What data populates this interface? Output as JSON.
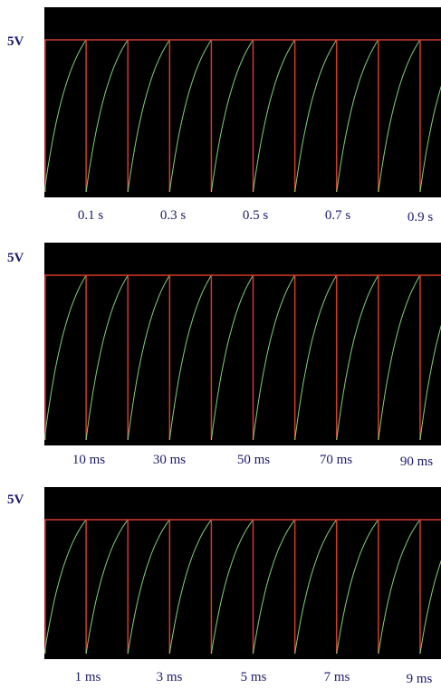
{
  "chart_data": [
    {
      "type": "line",
      "y_label_text": "5V",
      "tick_labels": [
        "0.1 s",
        "0.3 s",
        "0.5 s",
        "0.7 s",
        "0.9 s"
      ],
      "colors": {
        "background": "#000000",
        "frame": "#d33a2a",
        "charge_curve": "#7ed07e",
        "label": "#1a1a6e"
      },
      "series": [
        {
          "values": []
        }
      ],
      "cycles": 10
    },
    {
      "type": "line",
      "y_label_text": "5V",
      "tick_labels": [
        "10 ms",
        "30 ms",
        "50 ms",
        "70 ms",
        "90 ms"
      ],
      "colors": {
        "background": "#000000",
        "frame": "#d33a2a",
        "charge_curve": "#7ed07e",
        "label": "#1a1a6e"
      },
      "series": [
        {
          "values": []
        }
      ],
      "cycles": 10
    },
    {
      "type": "line",
      "y_label_text": "5V",
      "tick_labels": [
        "1 ms",
        "3 ms",
        "5 ms",
        "7 ms",
        "9 ms"
      ],
      "colors": {
        "background": "#000000",
        "frame": "#d33a2a",
        "charge_curve": "#7ed07e",
        "label": "#1a1a6e"
      },
      "series": [
        {
          "values": []
        }
      ],
      "cycles": 10
    }
  ]
}
